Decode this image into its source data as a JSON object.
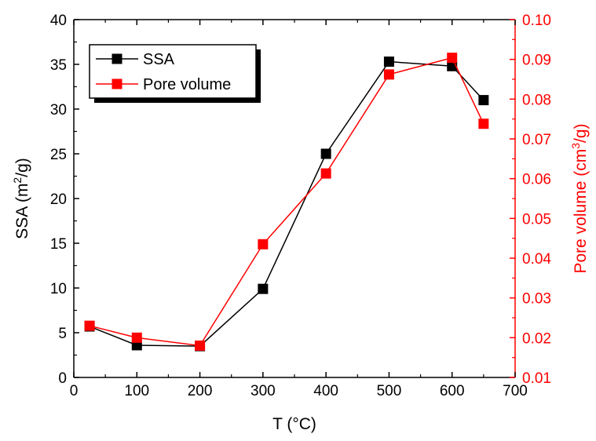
{
  "chart_data": {
    "type": "line",
    "xlabel": "T (°C)",
    "x_ticks": [
      "0",
      "100",
      "200",
      "300",
      "400",
      "500",
      "600",
      "700"
    ],
    "xlim": [
      0,
      700
    ],
    "x": [
      25,
      100,
      200,
      300,
      400,
      500,
      600,
      650
    ],
    "y_left": {
      "label_parts": [
        "SSA (m",
        "2",
        "/g)"
      ],
      "lim": [
        0,
        40
      ],
      "ticks": [
        "0",
        "5",
        "10",
        "15",
        "20",
        "25",
        "30",
        "35",
        "40"
      ],
      "color": "#000000"
    },
    "y_right": {
      "label_parts": [
        "Pore volume (cm",
        "3",
        "/g)"
      ],
      "lim": [
        0.01,
        0.1
      ],
      "ticks": [
        "0.01",
        "0.02",
        "0.03",
        "0.04",
        "0.05",
        "0.06",
        "0.07",
        "0.08",
        "0.09",
        "0.10"
      ],
      "color": "#ff0000"
    },
    "series": [
      {
        "name": "SSA",
        "axis": "left",
        "color": "#000000",
        "values": [
          5.7,
          3.6,
          3.5,
          9.9,
          25.0,
          35.3,
          34.8,
          31.0
        ]
      },
      {
        "name": "Pore volume",
        "axis": "right",
        "color": "#ff0000",
        "values": [
          0.023,
          0.02,
          0.018,
          0.0435,
          0.0613,
          0.0862,
          0.0904,
          0.0738
        ]
      }
    ],
    "legend_position": "top-left",
    "grid": false
  }
}
